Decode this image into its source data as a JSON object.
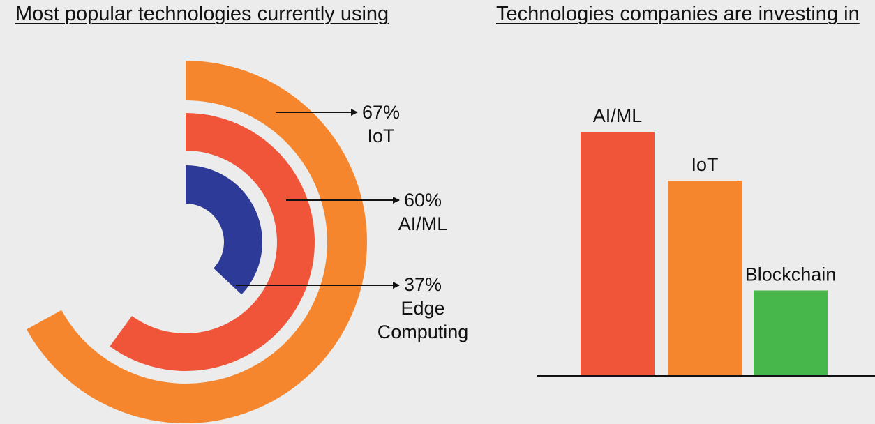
{
  "chart_data": [
    {
      "type": "radial-bar",
      "title": "Most popular technologies currently using",
      "unit": "%",
      "series": [
        {
          "name": "IoT",
          "value": 67,
          "value_label": "67%",
          "color": "#f5862d"
        },
        {
          "name": "AI/ML",
          "value": 60,
          "value_label": "60%",
          "color": "#f0553a"
        },
        {
          "name": "Edge Computing",
          "value": 37,
          "value_label": "37%",
          "color": "#2e3a97"
        }
      ]
    },
    {
      "type": "bar",
      "title": "Technologies companies are investing in",
      "categories": [
        "AI/ML",
        "IoT",
        "Blockchain"
      ],
      "values": [
        100,
        80,
        35
      ],
      "ylim": [
        0,
        100
      ],
      "colors": [
        "#f0553a",
        "#f5862d",
        "#47b64b"
      ],
      "grid": false
    }
  ]
}
